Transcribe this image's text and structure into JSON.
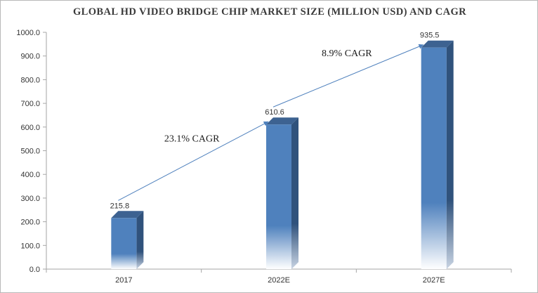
{
  "title": "GLOBAL HD VIDEO BRIDGE CHIP MARKET SIZE (MILLION USD) AND CAGR",
  "chart_data": {
    "type": "bar",
    "title": "GLOBAL HD VIDEO BRIDGE CHIP MARKET SIZE (MILLION USD) AND CAGR",
    "categories": [
      "2017",
      "2022E",
      "2027E"
    ],
    "values": [
      215.8,
      610.6,
      935.5
    ],
    "value_labels": [
      "215.8",
      "610.6",
      "935.5"
    ],
    "ylim": [
      0,
      1000
    ],
    "yticks": [
      "0.0",
      "100.0",
      "200.0",
      "300.0",
      "400.0",
      "500.0",
      "600.0",
      "700.0",
      "800.0",
      "900.0",
      "1000.0"
    ],
    "xlabel": "",
    "ylabel": "",
    "grid": false,
    "legend": "none",
    "annotations": [
      {
        "text": "23.1% CAGR",
        "from": "2017",
        "to": "2022E"
      },
      {
        "text": "8.9% CAGR",
        "from": "2022E",
        "to": "2027E"
      }
    ],
    "colors": {
      "bar": "#4f81bd",
      "bar_side": "#30527c",
      "bar_top": "#3d6291",
      "arrow": "#4f81bd",
      "axis": "#a6a6a6"
    }
  }
}
